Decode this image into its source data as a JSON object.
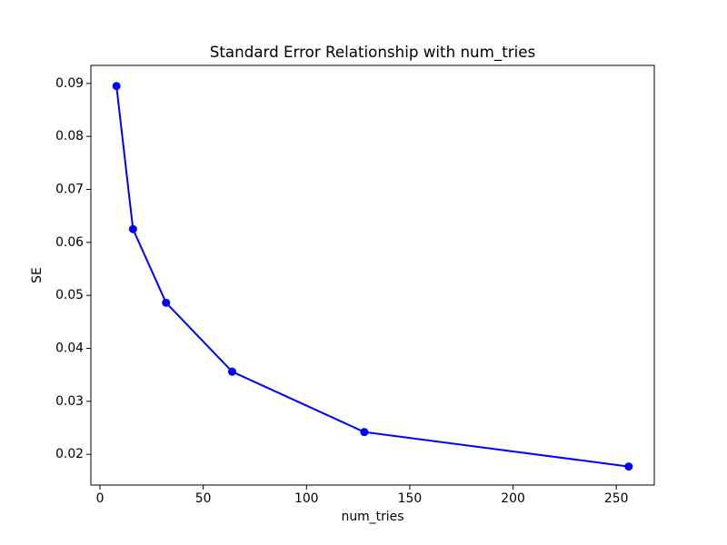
{
  "window": {
    "background": "#ffffff"
  },
  "chart_data": {
    "type": "line",
    "title": "Standard Error Relationship with num_tries",
    "xlabel": "num_tries",
    "ylabel": "SE",
    "x": [
      8,
      16,
      32,
      64,
      128,
      256
    ],
    "series": [
      {
        "name": "SE",
        "color": "#0000ff",
        "marker": "circle",
        "values": [
          0.0895,
          0.0625,
          0.0486,
          0.0356,
          0.0242,
          0.0177
        ]
      }
    ],
    "xlim": [
      -4.4,
      268.4
    ],
    "ylim": [
      0.0142,
      0.0934
    ],
    "xticks": [
      0,
      50,
      100,
      150,
      200,
      250
    ],
    "yticks": [
      0.02,
      0.03,
      0.04,
      0.05,
      0.06,
      0.07,
      0.08,
      0.09
    ],
    "ytick_decimals": 2,
    "grid": false,
    "legend": null,
    "text_color": "#000000",
    "axis_color": "#000000"
  }
}
